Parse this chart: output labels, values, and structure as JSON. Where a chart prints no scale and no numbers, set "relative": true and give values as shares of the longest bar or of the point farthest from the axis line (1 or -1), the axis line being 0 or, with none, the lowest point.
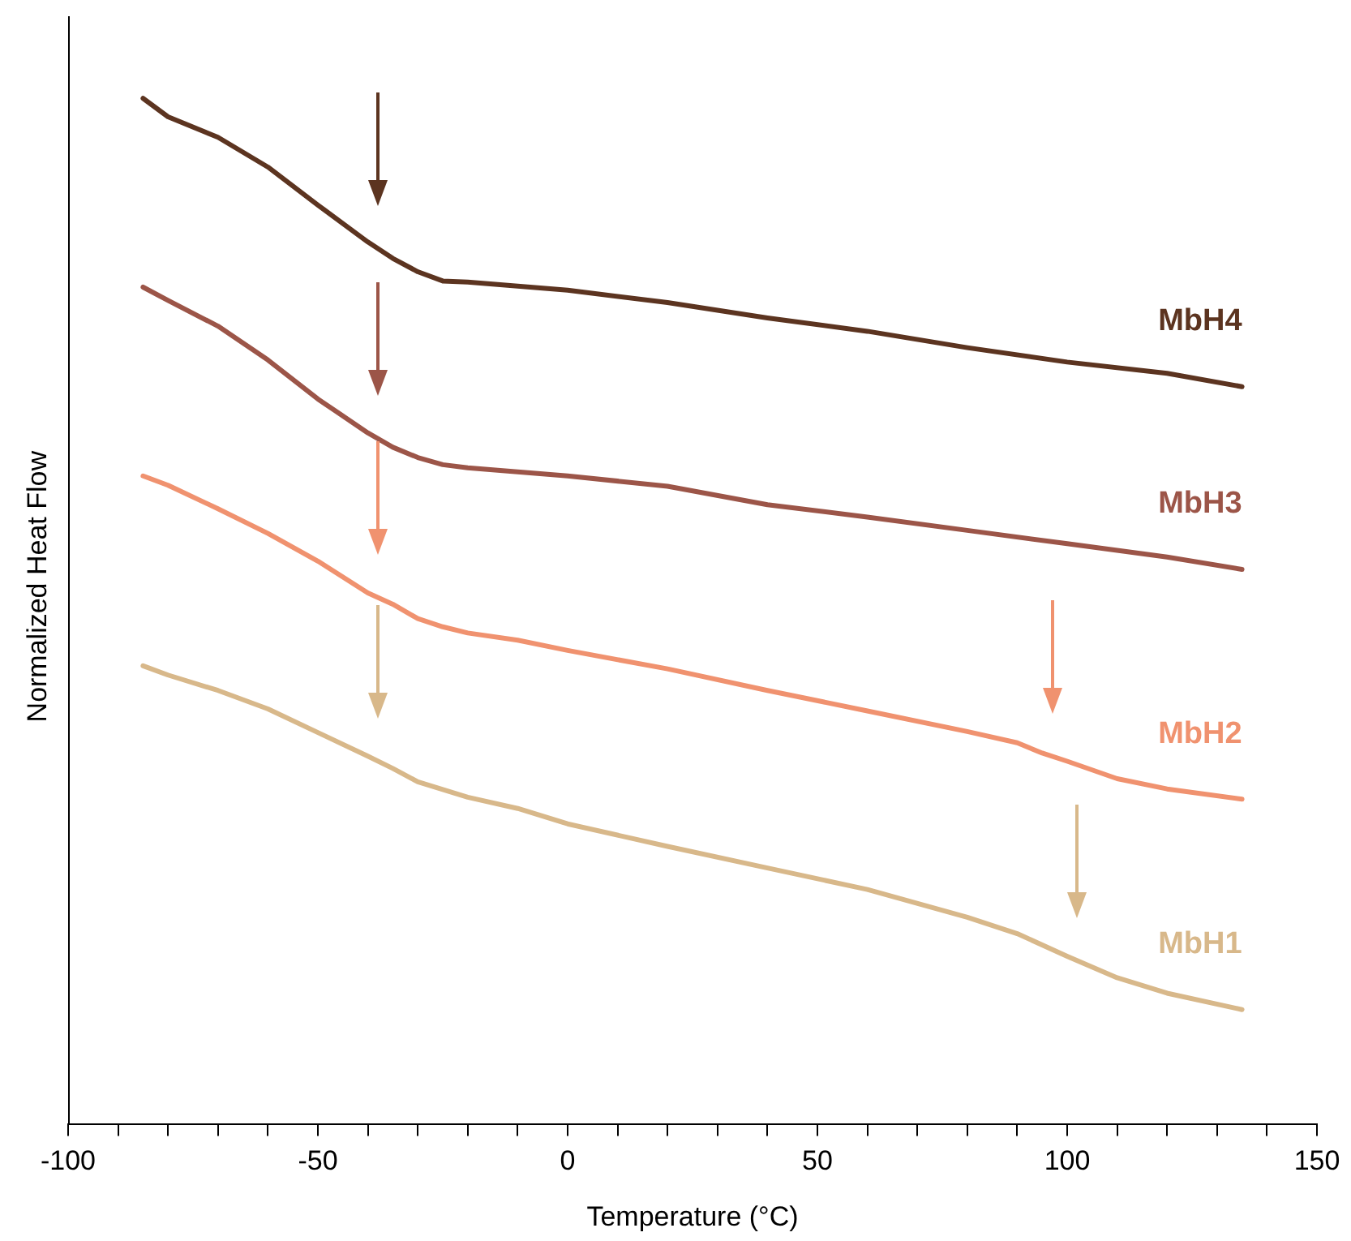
{
  "chart_data": {
    "type": "line",
    "relative": true,
    "xlabel": "Temperature (°C)",
    "ylabel": "Normalized Heat Flow",
    "legend": false,
    "grid": false,
    "marker": "none",
    "line_style": "solid",
    "xlim": [
      -100,
      150
    ],
    "xticks": [
      -100,
      {
        "value": -90,
        "label": null
      },
      {
        "value": -80,
        "label": null
      },
      {
        "value": -70,
        "label": null
      },
      {
        "value": -60,
        "label": null
      },
      -50,
      {
        "value": -40,
        "label": null
      },
      {
        "value": -30,
        "label": null
      },
      {
        "value": -20,
        "label": null
      },
      {
        "value": -10,
        "label": null
      },
      0,
      {
        "value": 10,
        "label": null
      },
      {
        "value": 20,
        "label": null
      },
      {
        "value": 30,
        "label": null
      },
      {
        "value": 40,
        "label": null
      },
      50,
      {
        "value": 60,
        "label": null
      },
      {
        "value": 70,
        "label": null
      },
      {
        "value": 80,
        "label": null
      },
      {
        "value": 90,
        "label": null
      },
      100,
      {
        "value": 110,
        "label": null
      },
      {
        "value": 120,
        "label": null
      },
      {
        "value": 130,
        "label": null
      },
      {
        "value": 140,
        "label": null
      },
      150
    ],
    "series": [
      {
        "name": "MbH4",
        "color": "#5c3420",
        "x": [
          -85,
          -80,
          -70,
          -60,
          -50,
          -40,
          -35,
          -30,
          -25,
          -20,
          0,
          20,
          40,
          60,
          80,
          100,
          120,
          135
        ],
        "values": [
          1.0,
          0.982,
          0.962,
          0.933,
          0.896,
          0.86,
          0.844,
          0.831,
          0.822,
          0.821,
          0.813,
          0.801,
          0.786,
          0.773,
          0.757,
          0.743,
          0.732,
          0.719
        ]
      },
      {
        "name": "MbH3",
        "color": "#9c5548",
        "x": [
          -85,
          -80,
          -70,
          -60,
          -50,
          -40,
          -35,
          -30,
          -25,
          -20,
          0,
          20,
          40,
          60,
          80,
          100,
          120,
          135
        ],
        "values": [
          0.816,
          0.803,
          0.778,
          0.745,
          0.707,
          0.674,
          0.66,
          0.65,
          0.643,
          0.64,
          0.632,
          0.622,
          0.604,
          0.592,
          0.579,
          0.566,
          0.553,
          0.541
        ]
      },
      {
        "name": "MbH2",
        "color": "#f0926f",
        "x": [
          -85,
          -80,
          -70,
          -60,
          -50,
          -40,
          -35,
          -30,
          -25,
          -20,
          -10,
          0,
          20,
          40,
          60,
          80,
          90,
          95,
          100,
          110,
          120,
          135
        ],
        "values": [
          0.632,
          0.623,
          0.6,
          0.576,
          0.549,
          0.518,
          0.507,
          0.493,
          0.485,
          0.479,
          0.472,
          0.462,
          0.444,
          0.423,
          0.403,
          0.383,
          0.372,
          0.362,
          0.354,
          0.337,
          0.327,
          0.317
        ]
      },
      {
        "name": "MbH1",
        "color": "#d8b88a",
        "x": [
          -85,
          -80,
          -70,
          -60,
          -50,
          -40,
          -35,
          -30,
          -20,
          -10,
          0,
          20,
          40,
          60,
          80,
          90,
          100,
          110,
          120,
          135
        ],
        "values": [
          0.447,
          0.438,
          0.423,
          0.405,
          0.382,
          0.359,
          0.347,
          0.334,
          0.319,
          0.308,
          0.293,
          0.271,
          0.25,
          0.229,
          0.202,
          0.186,
          0.164,
          0.143,
          0.128,
          0.112
        ]
      }
    ]
  }
}
